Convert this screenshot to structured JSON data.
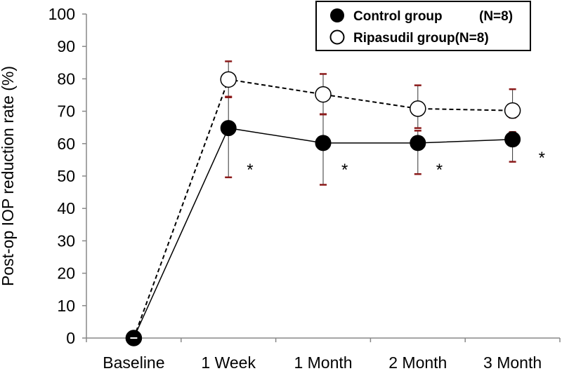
{
  "chart_data": {
    "type": "line",
    "title": "",
    "xlabel": "",
    "ylabel": "Post-op IOP reduction rate (%)",
    "ylim": [
      0,
      100
    ],
    "yticks": [
      0,
      10,
      20,
      30,
      40,
      50,
      60,
      70,
      80,
      90,
      100
    ],
    "grid": false,
    "legend_position": "top-right",
    "categories": [
      "Baseline",
      "1 Week",
      "1 Month",
      "2 Month",
      "3 Month"
    ],
    "series": [
      {
        "name": "Control group (N=8)",
        "legend_name": "Control group",
        "legend_n": "(N=8)",
        "marker": "filled-circle",
        "line_style": "solid",
        "color": "#000000",
        "values": [
          0,
          64.8,
          60.2,
          60.2,
          61.3
        ],
        "error_minus": [
          0,
          15.2,
          12.9,
          9.6,
          6.9
        ],
        "error_plus": [
          0,
          9.5,
          8.9,
          3.8,
          2.3
        ]
      },
      {
        "name": "Ripasudil group(N=8)",
        "legend_name": "Ripasudil group(N=8)",
        "legend_n": "",
        "marker": "open-circle",
        "line_style": "dashed",
        "color": "#000000",
        "values": [
          0,
          79.8,
          75.2,
          70.8,
          70.2
        ],
        "error_minus": [
          0,
          5.3,
          6.2,
          6.0,
          2.2
        ],
        "error_plus": [
          0,
          5.6,
          6.3,
          7.2,
          6.6
        ]
      }
    ],
    "error_cap_color": "#8b1a1a",
    "significance_marker": "*",
    "significance_categories": [
      "1 Week",
      "1 Month",
      "2 Month",
      "3 Month"
    ]
  }
}
